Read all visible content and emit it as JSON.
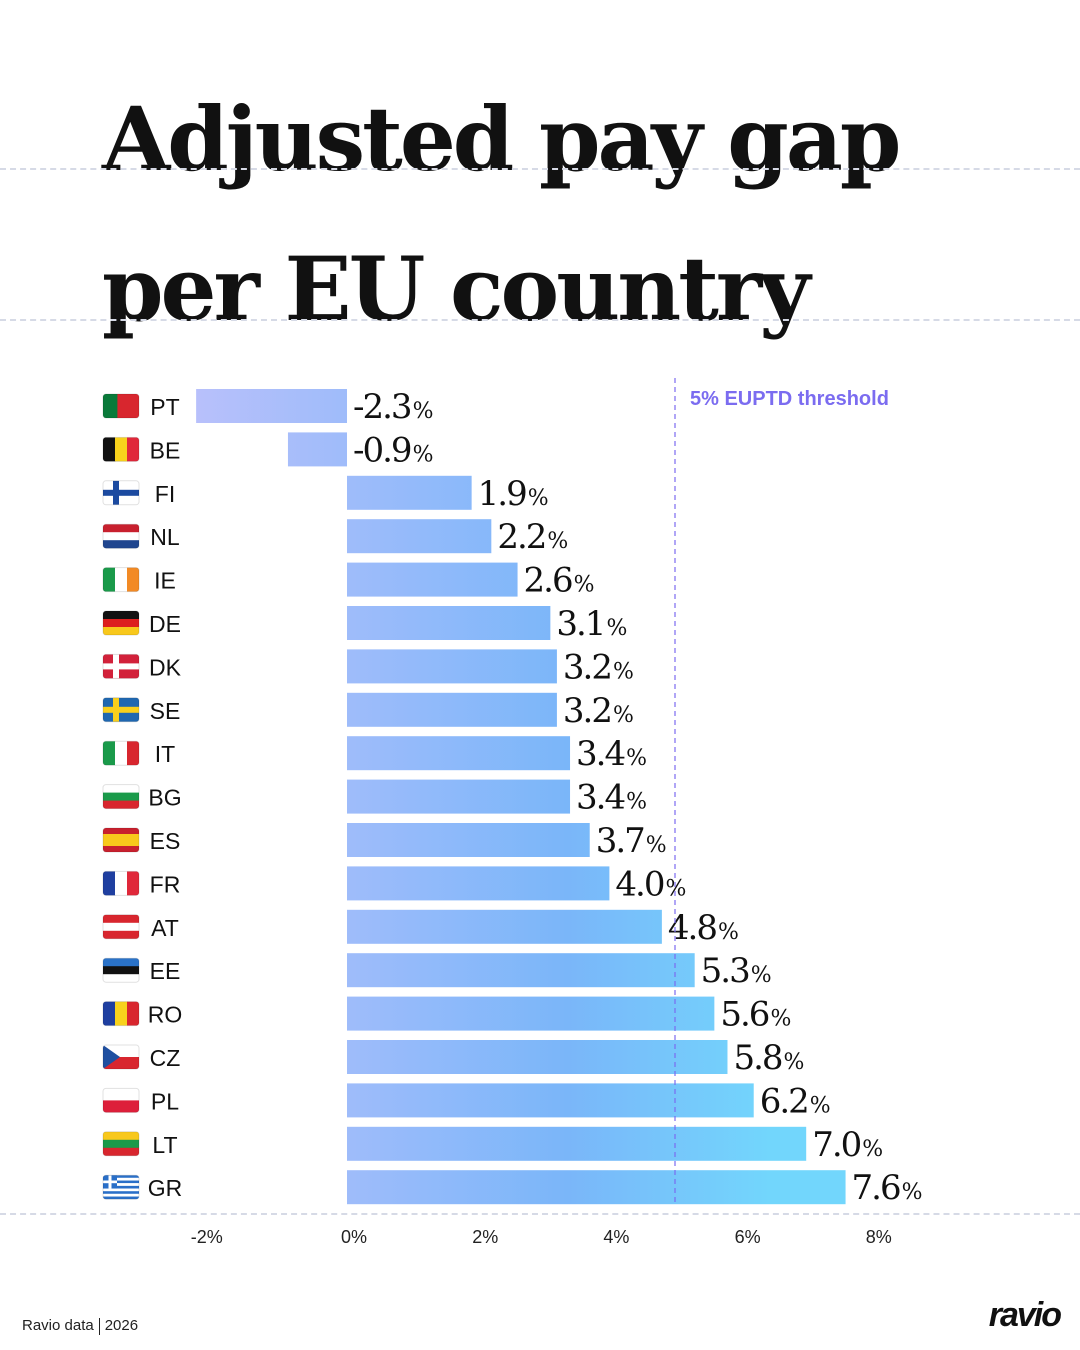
{
  "title_lines": [
    "Adjusted pay gap",
    "per EU country"
  ],
  "chart_data": {
    "type": "bar",
    "orientation": "horizontal",
    "categories": [
      "PT",
      "BE",
      "FI",
      "NL",
      "IE",
      "DE",
      "DK",
      "SE",
      "IT",
      "BG",
      "ES",
      "FR",
      "AT",
      "EE",
      "RO",
      "CZ",
      "PL",
      "LT",
      "GR"
    ],
    "values": [
      -2.3,
      -0.9,
      1.9,
      2.2,
      2.6,
      3.1,
      3.2,
      3.2,
      3.4,
      3.4,
      3.7,
      4.0,
      4.8,
      5.3,
      5.6,
      5.8,
      6.2,
      7.0,
      7.6
    ],
    "value_labels": [
      "-2.3",
      "-0.9",
      "1.9",
      "2.2",
      "2.6",
      "3.1",
      "3.2",
      "3.2",
      "3.4",
      "3.4",
      "3.7",
      "4.0",
      "4.8",
      "5.3",
      "5.6",
      "5.8",
      "6.2",
      "7.0",
      "7.6"
    ],
    "value_suffix": "%",
    "xlim": [
      -2.3,
      8
    ],
    "xticks": [
      -2,
      0,
      2,
      4,
      6,
      8
    ],
    "xtick_labels": [
      "-2%",
      "0%",
      "2%",
      "4%",
      "6%",
      "8%"
    ],
    "reference_line": {
      "value": 5,
      "label": "5% EUPTD threshold",
      "color": "#7b6cf0"
    },
    "bar_gradient": [
      "#b8c0fb",
      "#7ab6f9",
      "#72d6fc"
    ],
    "grid": false,
    "legend": "none"
  },
  "footer": {
    "source": "Ravio data",
    "year": "2026",
    "logo": "ravio"
  }
}
